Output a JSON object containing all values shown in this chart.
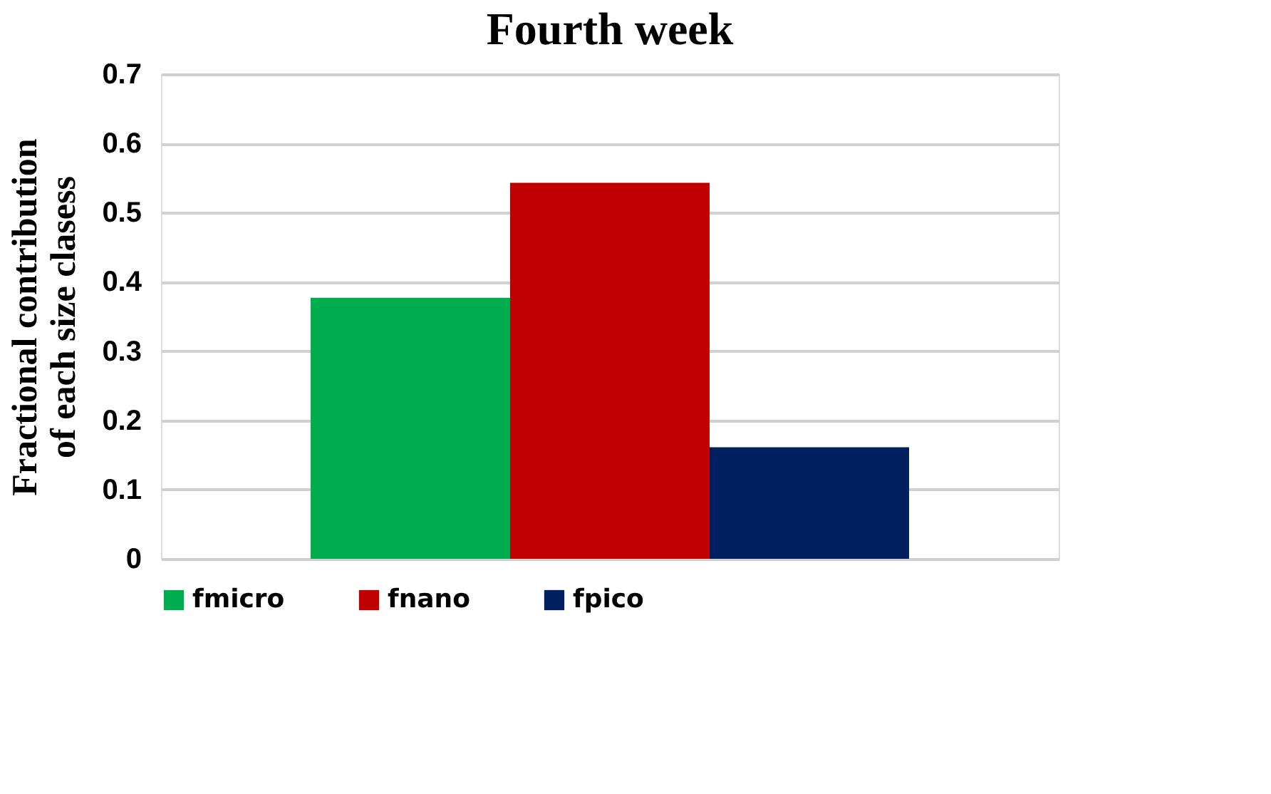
{
  "chart_data": {
    "type": "bar",
    "title": "Fourth week",
    "ylabel": "Fractional contribution of each size clasess",
    "categories": [
      null
    ],
    "series": [
      {
        "name": "fmicro",
        "color": "#00ad4e",
        "values": [
          0.377
        ]
      },
      {
        "name": "fnano",
        "color": "#c00000",
        "values": [
          0.543
        ]
      },
      {
        "name": "fpico",
        "color": "#001f5f",
        "values": [
          0.161
        ]
      }
    ],
    "ylim": [
      0,
      0.7
    ],
    "yticks": [
      0,
      0.1,
      0.2,
      0.3,
      0.4,
      0.5,
      0.6,
      0.7
    ],
    "grid": "y",
    "legend": "bottom"
  }
}
